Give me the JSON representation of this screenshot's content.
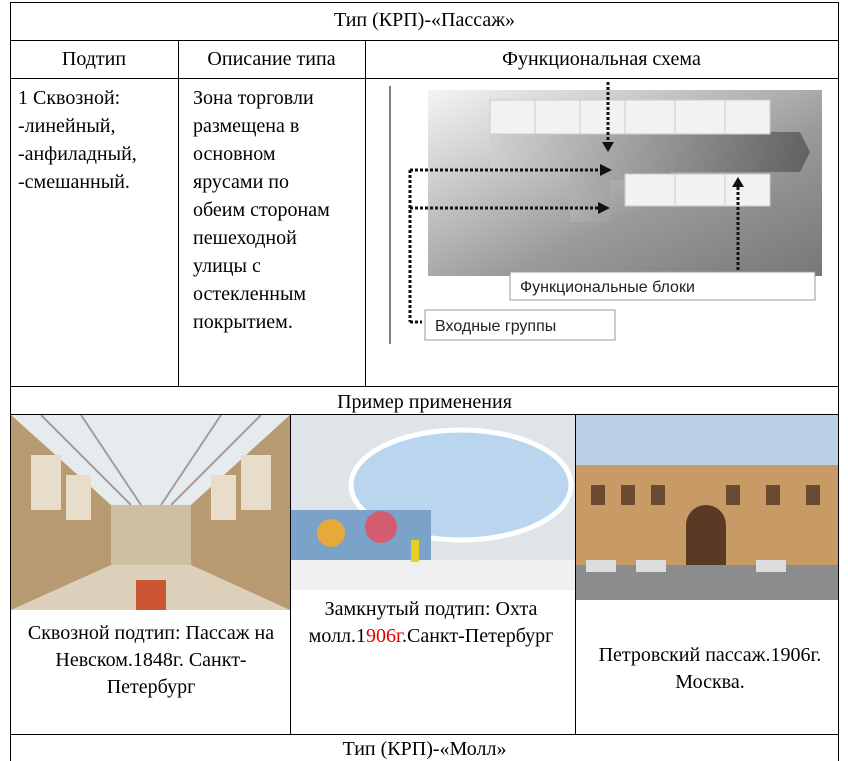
{
  "title": "Тип (КРП)-«Пассаж»",
  "headers": [
    "Подтип",
    "Описание типа",
    "Функциональная схема"
  ],
  "subtype": [
    "1 Сквозной:",
    "-линейный,",
    "-анфиладный,",
    "-смешанный."
  ],
  "description": "Зона торговли размещена в основном ярусами по обеим сторонам пешеходной улицы с остекленным покрытием.",
  "diagram": {
    "labels": [
      "Функциональные блоки",
      "Входные группы"
    ]
  },
  "examples_title": "Пример применения",
  "examples": [
    {
      "caption": "Сквозной подтип: Пассаж на Невском.1848г. Санкт-Петербург"
    },
    {
      "caption": [
        "Замкнутый подтип: Охта молл.1",
        "906г",
        ".Санкт-Петербург"
      ]
    },
    {
      "caption": "Петровский пассаж.1906г. Москва."
    }
  ],
  "next_title": "Тип (КРП)-«Молл»"
}
